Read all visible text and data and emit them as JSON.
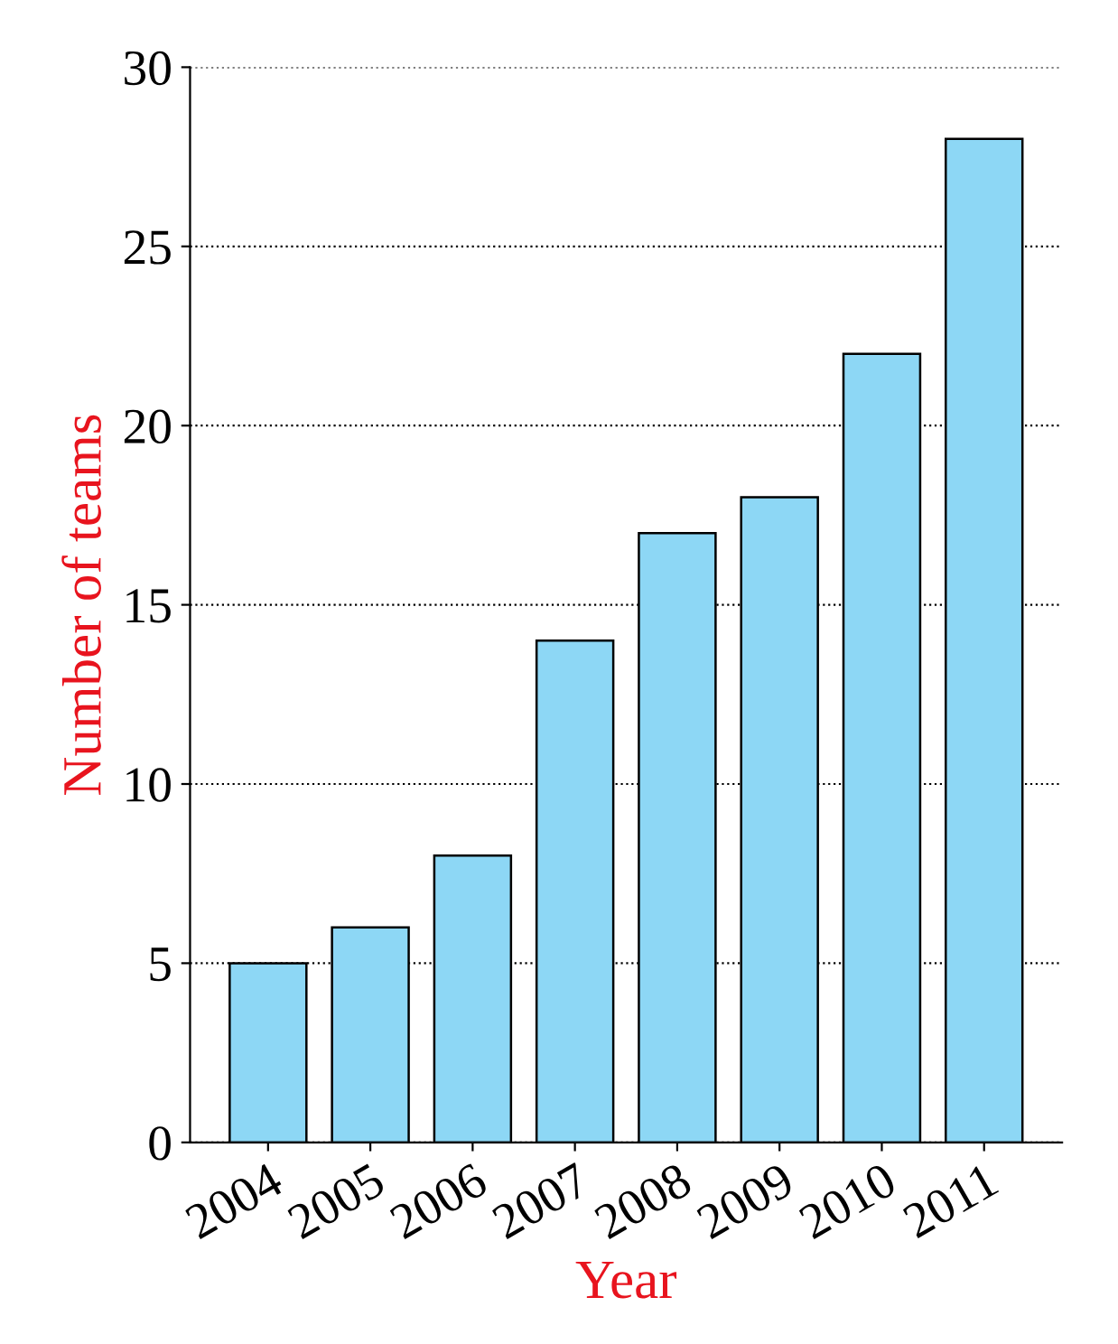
{
  "chart_data": {
    "type": "bar",
    "xlabel": "Year",
    "ylabel": "Number of teams",
    "categories": [
      "2004",
      "2005",
      "2006",
      "2007",
      "2008",
      "2009",
      "2010",
      "2011"
    ],
    "values": [
      5,
      6,
      8,
      14,
      17,
      18,
      22,
      28
    ],
    "color": "#8dd7f5",
    "ylim": [
      0,
      30
    ],
    "yticks": [
      0,
      5,
      10,
      15,
      20,
      25,
      30
    ],
    "grid": "y"
  }
}
